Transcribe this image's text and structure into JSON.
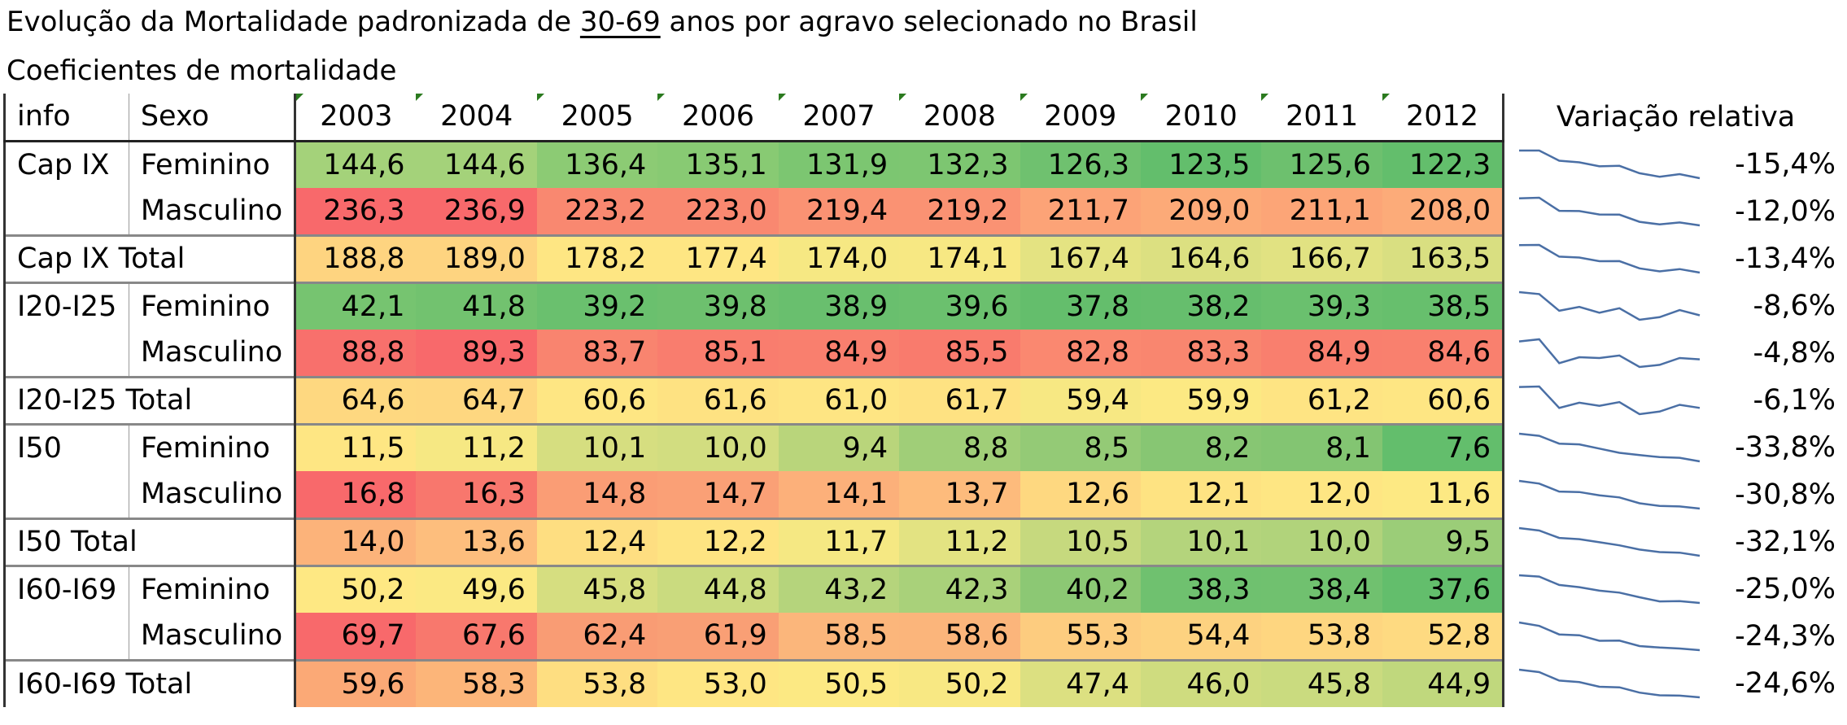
{
  "title": {
    "before": "Evolução da Mortalidade padronizada de ",
    "underlined": "30-69",
    "after": " anos por agravo selecionado no Brasil"
  },
  "subtitle": "Coeficientes de mortalidade",
  "header": {
    "info": "info",
    "sexo": "Sexo",
    "years": [
      "2003",
      "2004",
      "2005",
      "2006",
      "2007",
      "2008",
      "2009",
      "2010",
      "2011",
      "2012"
    ],
    "variation": "Variação relativa"
  },
  "rows": [
    {
      "info": "Cap IX",
      "sexo": "Feminino",
      "values": [
        "144,6",
        "144,6",
        "136,4",
        "135,1",
        "131,9",
        "132,3",
        "126,3",
        "123,5",
        "125,6",
        "122,3"
      ],
      "variation": "-15,4%",
      "colors": [
        "#a4d27a",
        "#a4d27a",
        "#8ccb74",
        "#88ca73",
        "#7cc671",
        "#7dc671",
        "#6fc16f",
        "#63be6c",
        "#6dc06e",
        "#63be6c"
      ]
    },
    {
      "info": "",
      "sexo": "Masculino",
      "values": [
        "236,3",
        "236,9",
        "223,2",
        "223,0",
        "219,4",
        "219,2",
        "211,7",
        "209,0",
        "211,1",
        "208,0"
      ],
      "variation": "-12,0%",
      "colors": [
        "#f8696b",
        "#f8696b",
        "#f98870",
        "#f98870",
        "#fa9273",
        "#fa9273",
        "#fca377",
        "#fcaa78",
        "#fca577",
        "#fcab79"
      ]
    },
    {
      "info": "Cap IX Total",
      "sexo": "",
      "values": [
        "188,8",
        "189,0",
        "178,2",
        "177,4",
        "174,0",
        "174,1",
        "167,4",
        "164,6",
        "166,7",
        "163,5"
      ],
      "variation": "-13,4%",
      "colors": [
        "#fed480",
        "#fed480",
        "#fee683",
        "#fee683",
        "#f6e883",
        "#f7e883",
        "#e4e382",
        "#dce081",
        "#e1e282",
        "#d9df81"
      ]
    },
    {
      "info": "I20-I25",
      "sexo": "Feminino",
      "values": [
        "42,1",
        "41,8",
        "39,2",
        "39,8",
        "38,9",
        "39,6",
        "37,8",
        "38,2",
        "39,3",
        "38,5"
      ],
      "variation": "-8,6%",
      "colors": [
        "#76c470",
        "#72c26f",
        "#6ac06e",
        "#6dc06e",
        "#69bf6e",
        "#6bc06e",
        "#64be6c",
        "#66be6d",
        "#6ac06e",
        "#67bf6d"
      ]
    },
    {
      "info": "",
      "sexo": "Masculino",
      "values": [
        "88,8",
        "89,3",
        "83,7",
        "85,1",
        "84,9",
        "85,5",
        "82,8",
        "83,3",
        "84,9",
        "84,6"
      ],
      "variation": "-4,8%",
      "colors": [
        "#f8706c",
        "#f8696b",
        "#f9846f",
        "#f97d6e",
        "#f97f6e",
        "#f97b6d",
        "#fa8870",
        "#f9866f",
        "#f97f6e",
        "#f9806e"
      ]
    },
    {
      "info": "I20-I25 Total",
      "sexo": "",
      "values": [
        "64,6",
        "64,7",
        "60,6",
        "61,6",
        "61,0",
        "61,7",
        "59,4",
        "59,9",
        "61,2",
        "60,6"
      ],
      "variation": "-6,1%",
      "colors": [
        "#fed880",
        "#fed780",
        "#fee683",
        "#fee282",
        "#fee583",
        "#fee282",
        "#f7e883",
        "#fce983",
        "#fee483",
        "#fee683"
      ]
    },
    {
      "info": "I50",
      "sexo": "Feminino",
      "values": [
        "11,5",
        "11,2",
        "10,1",
        "10,0",
        "9,4",
        "8,8",
        "8,5",
        "8,2",
        "8,1",
        "7,6"
      ],
      "variation": "-33,8%",
      "colors": [
        "#fee683",
        "#f6e883",
        "#d6de80",
        "#d2dd80",
        "#b9d57b",
        "#a0ce78",
        "#94ca76",
        "#87c673",
        "#83c572",
        "#63be6c"
      ]
    },
    {
      "info": "",
      "sexo": "Masculino",
      "values": [
        "16,8",
        "16,3",
        "14,8",
        "14,7",
        "14,1",
        "13,7",
        "12,6",
        "12,1",
        "12,0",
        "11,6"
      ],
      "variation": "-30,8%",
      "colors": [
        "#f8696b",
        "#f8776d",
        "#fa9d75",
        "#faa076",
        "#fcb07a",
        "#fdbb7c",
        "#fed880",
        "#fee382",
        "#fee683",
        "#fde983"
      ]
    },
    {
      "info": "I50 Total",
      "sexo": "",
      "values": [
        "14,0",
        "13,6",
        "12,4",
        "12,2",
        "11,7",
        "11,2",
        "10,5",
        "10,1",
        "10,0",
        "9,5"
      ],
      "variation": "-32,1%",
      "colors": [
        "#fcb37a",
        "#fdbe7d",
        "#fede81",
        "#fee482",
        "#f5e883",
        "#e3e382",
        "#c6d97e",
        "#b4d47c",
        "#b1d37b",
        "#9bcd78"
      ]
    },
    {
      "info": "I60-I69",
      "sexo": "Feminino",
      "values": [
        "50,2",
        "49,6",
        "45,8",
        "44,8",
        "43,2",
        "42,3",
        "40,2",
        "38,3",
        "38,4",
        "37,6"
      ],
      "variation": "-25,0%",
      "colors": [
        "#fee883",
        "#fbe983",
        "#d6de80",
        "#cadb7f",
        "#b5d47c",
        "#a9d17a",
        "#8cc874",
        "#6fc16f",
        "#70c16f",
        "#63be6c"
      ]
    },
    {
      "info": "",
      "sexo": "Masculino",
      "values": [
        "69,7",
        "67,6",
        "62,4",
        "61,9",
        "58,5",
        "58,6",
        "55,3",
        "54,4",
        "53,8",
        "52,8"
      ],
      "variation": "-24,3%",
      "colors": [
        "#f8696b",
        "#f8786d",
        "#f99c74",
        "#f99f75",
        "#fbb67b",
        "#fbb57b",
        "#fdcc7f",
        "#fdd280",
        "#fed680",
        "#feda81"
      ]
    },
    {
      "info": "I60-I69 Total",
      "sexo": "",
      "values": [
        "59,6",
        "58,3",
        "53,8",
        "53,0",
        "50,5",
        "50,2",
        "47,4",
        "46,0",
        "45,8",
        "44,9"
      ],
      "variation": "-24,6%",
      "colors": [
        "#fba976",
        "#fcb579",
        "#fede81",
        "#fee683",
        "#fce983",
        "#f8e883",
        "#dce081",
        "#cfdc7f",
        "#cadb7f",
        "#c0d87d"
      ]
    }
  ]
}
